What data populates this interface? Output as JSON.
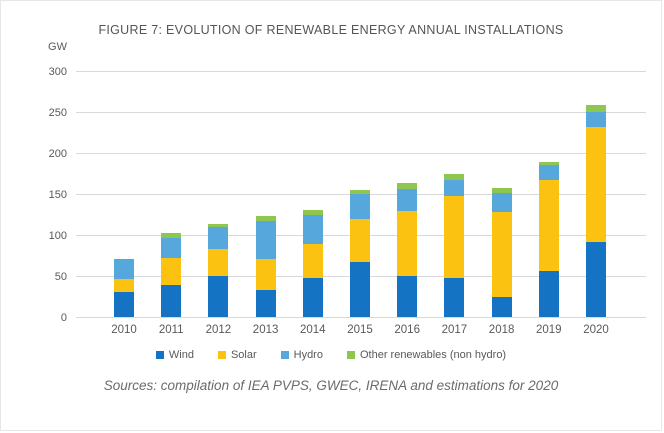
{
  "figure": {
    "title": "FIGURE 7: EVOLUTION OF RENEWABLE ENERGY ANNUAL INSTALLATIONS",
    "source": "Sources: compilation of IEA PVPS, GWEC, IRENA and estimations for 2020"
  },
  "colors": {
    "wind": "#1473C2",
    "solar": "#FCC212",
    "hydro": "#56A7DB",
    "other": "#8EC64F",
    "grid": "#D9D9D9",
    "axis_text": "#595959"
  },
  "chart_data": {
    "type": "bar",
    "stacked": true,
    "title": "FIGURE 7: EVOLUTION OF RENEWABLE ENERGY ANNUAL INSTALLATIONS",
    "xlabel": "",
    "ylabel": "GW",
    "ylim": [
      0,
      300
    ],
    "yticks": [
      0,
      50,
      100,
      150,
      200,
      250,
      300
    ],
    "grid": true,
    "legend_position": "bottom",
    "categories": [
      "2010",
      "2011",
      "2012",
      "2013",
      "2014",
      "2015",
      "2016",
      "2017",
      "2018",
      "2019",
      "2020"
    ],
    "series": [
      {
        "key": "wind",
        "name": "Wind",
        "values": [
          30,
          39,
          50,
          33,
          48,
          67,
          50,
          47,
          25,
          56,
          91
        ]
      },
      {
        "key": "solar",
        "name": "Solar",
        "values": [
          16,
          33,
          33,
          38,
          41,
          52,
          79,
          101,
          103,
          111,
          141
        ]
      },
      {
        "key": "hydro",
        "name": "Hydro",
        "values": [
          25,
          24,
          27,
          46,
          36,
          31,
          27,
          19,
          23,
          18,
          18
        ]
      },
      {
        "key": "other",
        "name": "Other renewables (non hydro)",
        "values": [
          0,
          7,
          4,
          6,
          6,
          5,
          7,
          7,
          6,
          4,
          8
        ]
      }
    ],
    "totals": [
      71,
      103,
      114,
      123,
      131,
      155,
      163,
      174,
      157,
      189,
      258
    ]
  }
}
